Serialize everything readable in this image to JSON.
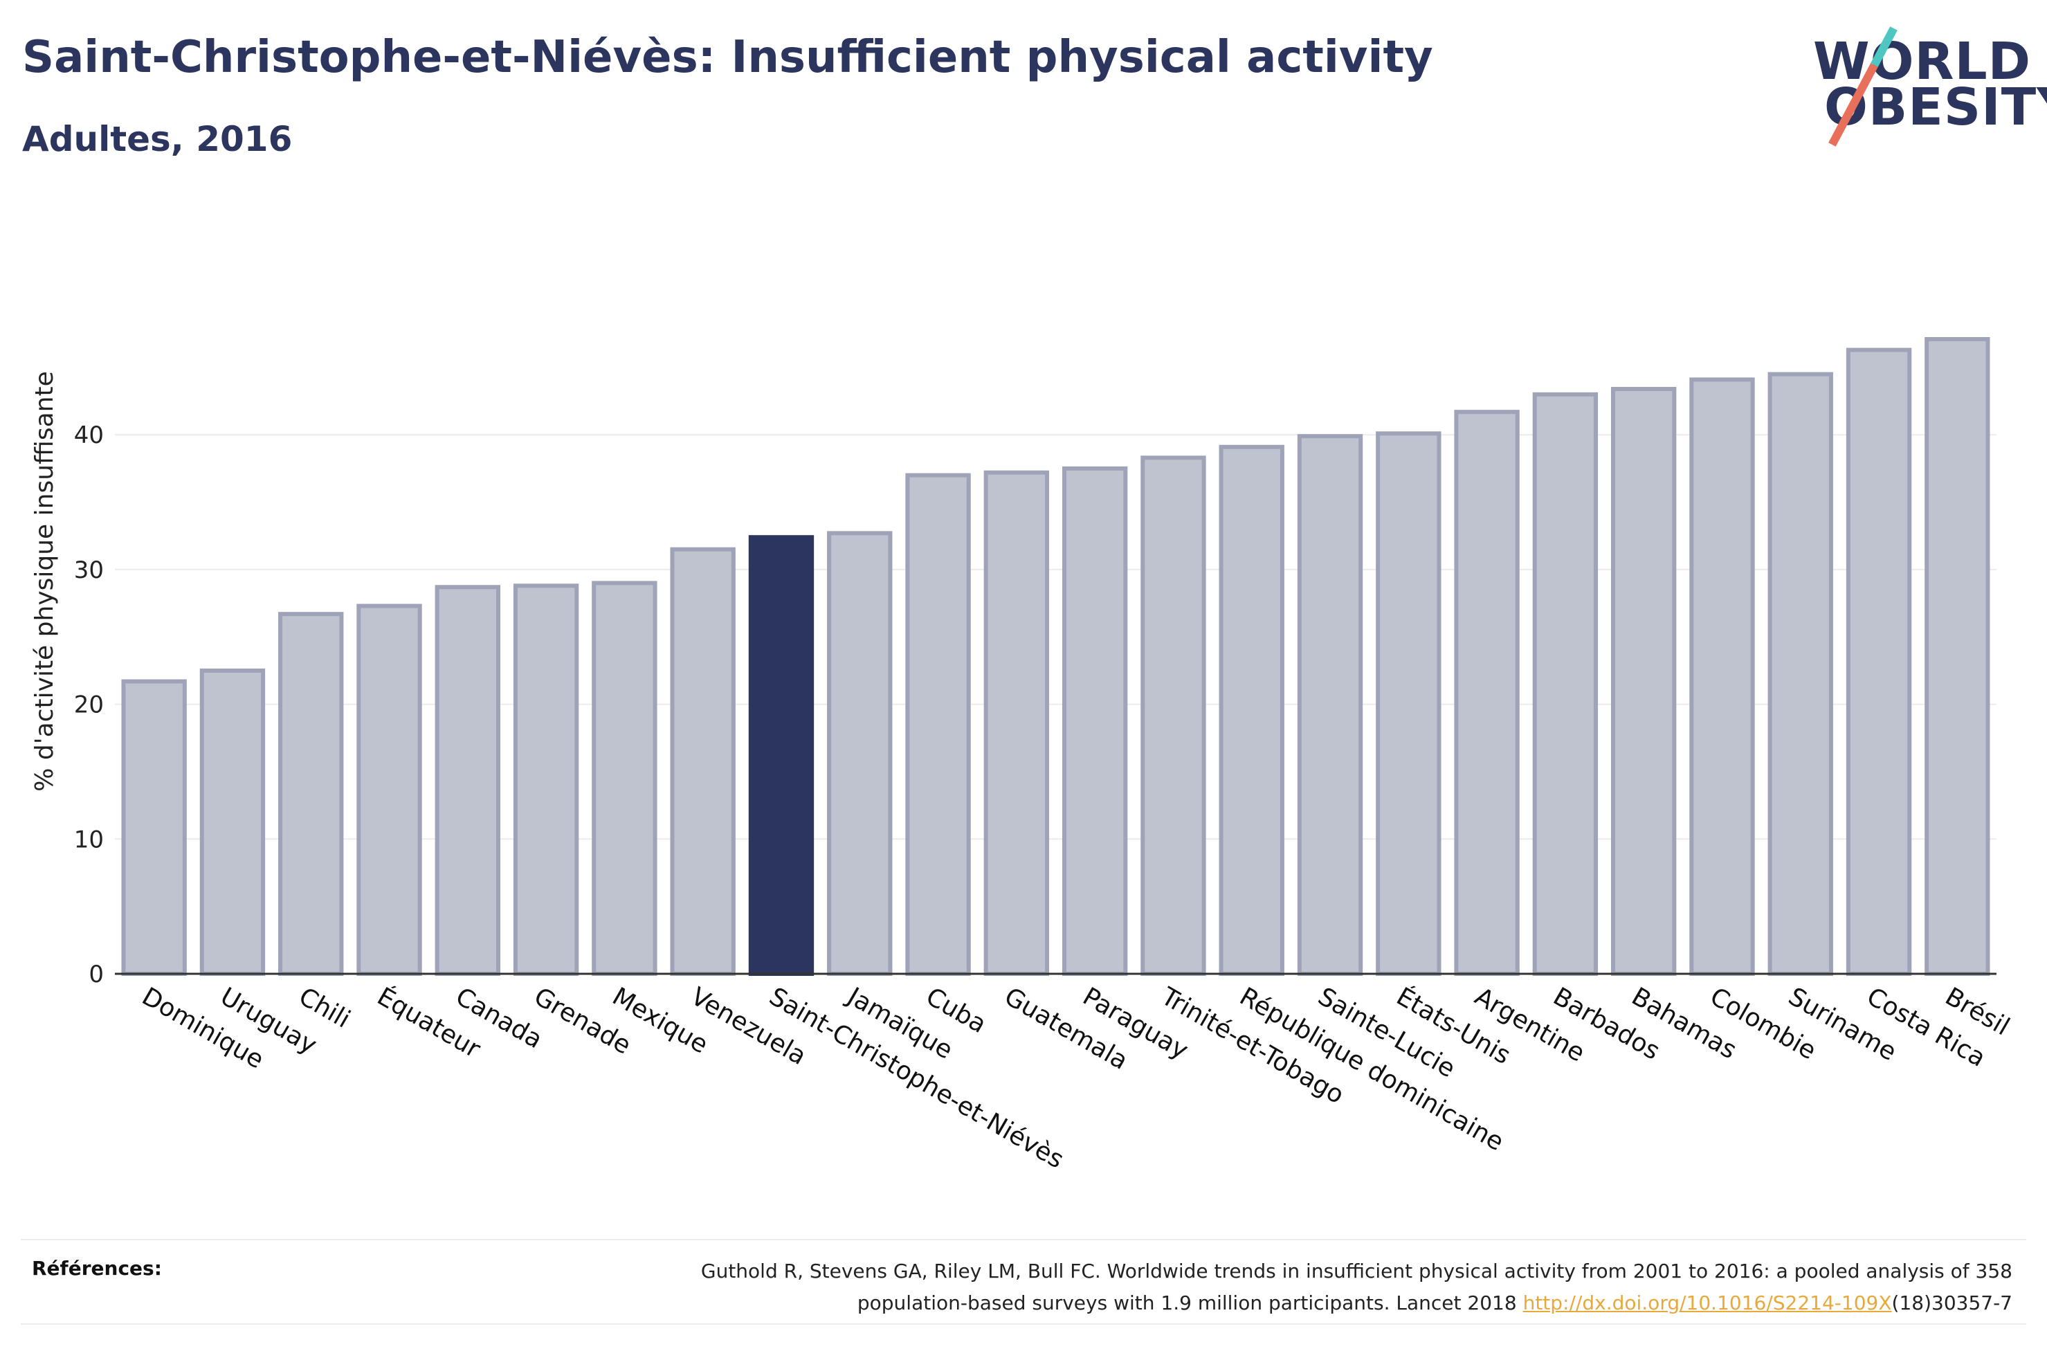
{
  "header": {
    "title": "Saint-Christophe-et-Niévès: Insufficient physical activity",
    "subtitle": "Adultes, 2016"
  },
  "logo": {
    "line1": "WORLD",
    "line2": "OBESITY"
  },
  "chart_data": {
    "type": "bar",
    "ylabel": "% d'activité physique insuffisante",
    "ylim": [
      0,
      48
    ],
    "yticks": [
      0,
      10,
      20,
      30,
      40
    ],
    "grid": true,
    "highlight": "Saint-Christophe-et-Niévès",
    "categories": [
      "Dominique",
      "Uruguay",
      "Chili",
      "Équateur",
      "Canada",
      "Grenade",
      "Mexique",
      "Venezuela",
      "Saint-Christophe-et-Niévès",
      "Jamaïque",
      "Cuba",
      "Guatemala",
      "Paraguay",
      "Trinité-et-Tobago",
      "République dominicaine",
      "Sainte-Lucie",
      "États-Unis",
      "Argentine",
      "Barbados",
      "Bahamas",
      "Colombie",
      "Suriname",
      "Costa Rica",
      "Brésil"
    ],
    "values": [
      21.7,
      22.5,
      26.7,
      27.3,
      28.7,
      28.8,
      29.0,
      31.5,
      32.4,
      32.7,
      37.0,
      37.2,
      37.5,
      38.3,
      39.1,
      39.9,
      40.1,
      41.7,
      43.0,
      43.4,
      44.1,
      44.5,
      46.3,
      47.1
    ],
    "colors": {
      "bar": "#bfc2cf",
      "bar_edge": "#9ea3b8",
      "highlight": "#2b355e",
      "grid": "#ececec",
      "axis": "#333333"
    }
  },
  "references": {
    "label": "Références:",
    "text_1": "Guthold R, Stevens GA, Riley LM, Bull FC. Worldwide trends in insufficient physical activity from 2001 to 2016: a pooled analysis of 358",
    "text_2": "population-based surveys with 1.9 million participants. Lancet 2018 ",
    "link": "http://dx.doi.org/10.1016/S2214-109X",
    "text_3": "(18)30357-7"
  }
}
